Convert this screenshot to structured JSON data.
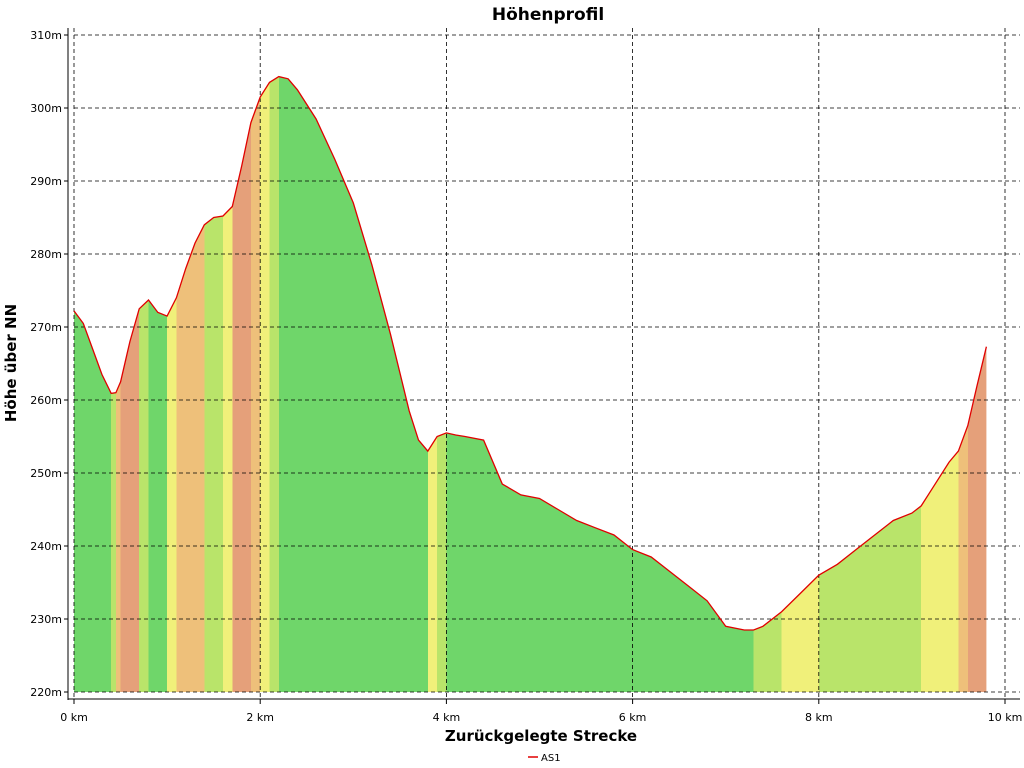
{
  "chart_data": {
    "type": "area",
    "title": "Höhenprofil",
    "xlabel": "Zurückgelegte Strecke",
    "ylabel": "Höhe über NN",
    "xlim": [
      0,
      10
    ],
    "ylim": [
      220,
      310
    ],
    "x_ticks": [
      0,
      2,
      4,
      6,
      8,
      10
    ],
    "x_tick_labels": [
      "0 km",
      "2 km",
      "4 km",
      "6 km",
      "8 km",
      "10 km"
    ],
    "y_ticks": [
      220,
      230,
      240,
      250,
      260,
      270,
      280,
      290,
      300,
      310
    ],
    "y_tick_labels": [
      "220m",
      "230m",
      "240m",
      "250m",
      "260m",
      "270m",
      "280m",
      "290m",
      "300m",
      "310m"
    ],
    "grid": true,
    "legend_position": "bottom-center",
    "series": [
      {
        "name": "AS1",
        "color": "#e00000",
        "x": [
          0.0,
          0.1,
          0.2,
          0.3,
          0.4,
          0.45,
          0.5,
          0.6,
          0.7,
          0.8,
          0.9,
          1.0,
          1.1,
          1.2,
          1.3,
          1.4,
          1.5,
          1.6,
          1.7,
          1.8,
          1.9,
          2.0,
          2.1,
          2.2,
          2.3,
          2.4,
          2.6,
          2.8,
          3.0,
          3.2,
          3.4,
          3.6,
          3.7,
          3.8,
          3.9,
          4.0,
          4.1,
          4.2,
          4.4,
          4.6,
          4.8,
          5.0,
          5.2,
          5.4,
          5.6,
          5.8,
          6.0,
          6.2,
          6.4,
          6.6,
          6.8,
          7.0,
          7.2,
          7.3,
          7.4,
          7.6,
          7.8,
          8.0,
          8.2,
          8.4,
          8.6,
          8.8,
          9.0,
          9.1,
          9.2,
          9.4,
          9.5,
          9.6,
          9.7,
          9.8
        ],
        "values": [
          272.2,
          270.5,
          267.0,
          263.5,
          260.9,
          261.0,
          262.5,
          268.0,
          272.5,
          273.7,
          272.0,
          271.5,
          274.0,
          278.0,
          281.5,
          284.0,
          285.0,
          285.2,
          286.5,
          292.0,
          298.0,
          301.5,
          303.5,
          304.3,
          304.0,
          302.5,
          298.5,
          293.0,
          287.0,
          278.5,
          269.0,
          258.5,
          254.5,
          253.0,
          255.0,
          255.5,
          255.2,
          255.0,
          254.5,
          248.5,
          247.0,
          246.5,
          245.0,
          243.5,
          242.5,
          241.5,
          239.5,
          238.5,
          236.5,
          234.5,
          232.5,
          229.0,
          228.5,
          228.5,
          229.0,
          231.0,
          233.5,
          236.0,
          237.5,
          239.5,
          241.5,
          243.5,
          244.5,
          245.5,
          247.5,
          251.5,
          253.0,
          256.5,
          262.0,
          267.3
        ]
      }
    ]
  }
}
